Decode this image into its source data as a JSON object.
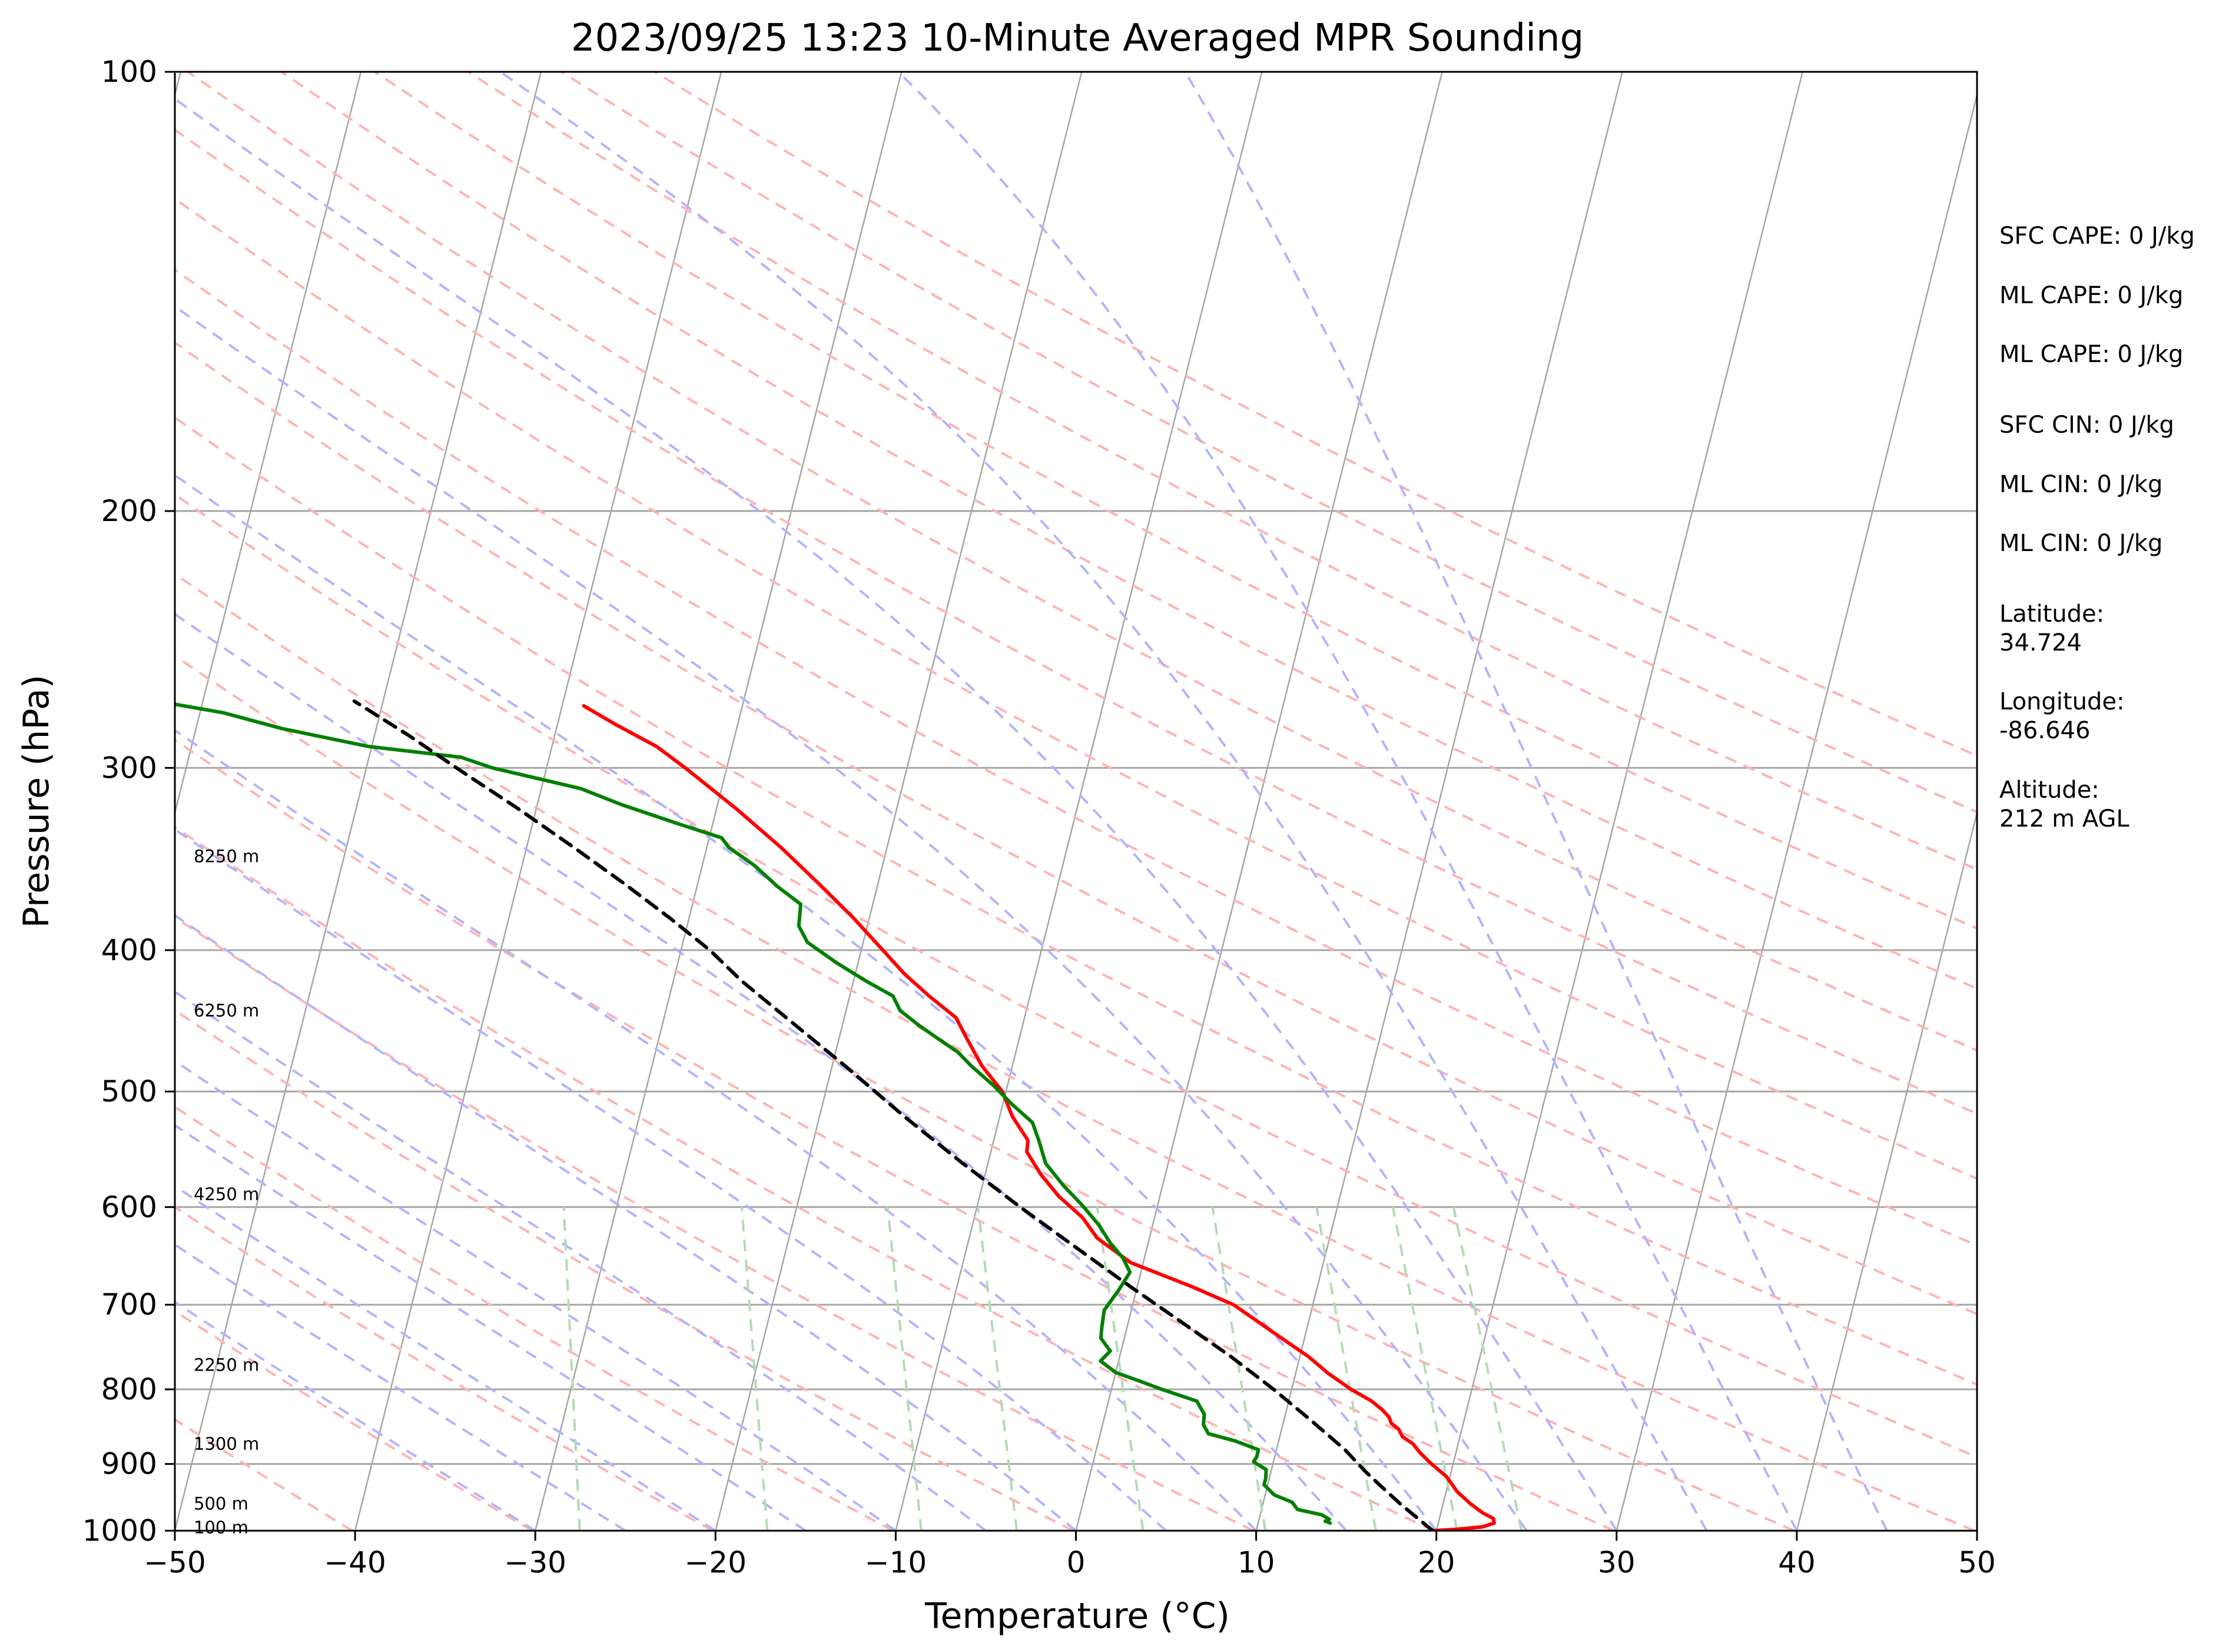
{
  "chart_data": {
    "type": "line",
    "subtype": "skew-t log-p sounding",
    "title": "2023/09/25 13:23 10-Minute Averaged MPR Sounding",
    "xlabel": "Temperature (°C)",
    "ylabel": "Pressure (hPa)",
    "xlim": [
      -50,
      50
    ],
    "ylim": [
      1000,
      100
    ],
    "y_scale": "log",
    "grid": true,
    "x_ticks": [
      -50,
      -40,
      -30,
      -20,
      -10,
      0,
      10,
      20,
      30,
      40,
      50
    ],
    "x_tick_labels": [
      "−50",
      "−40",
      "−30",
      "−20",
      "−10",
      "0",
      "10",
      "20",
      "30",
      "40",
      "50"
    ],
    "y_ticks": [
      1000,
      900,
      800,
      700,
      600,
      500,
      400,
      300,
      200,
      100
    ],
    "y_tick_labels": [
      "1000",
      "900",
      "800",
      "700",
      "600",
      "500",
      "400",
      "300",
      "200",
      "100"
    ],
    "height_labels": [
      {
        "pressure": 345,
        "text": "8250 m"
      },
      {
        "pressure": 440,
        "text": "6250 m"
      },
      {
        "pressure": 588,
        "text": "4250 m"
      },
      {
        "pressure": 770,
        "text": "2250 m"
      },
      {
        "pressure": 872,
        "text": "1300 m"
      },
      {
        "pressure": 958,
        "text": "500 m"
      },
      {
        "pressure": 995,
        "text": "100 m"
      }
    ],
    "series": [
      {
        "color": "#ff0000",
        "style": "solid",
        "points": [
          [
            1000,
            19.8
          ],
          [
            998,
            21.0
          ],
          [
            994,
            22.5
          ],
          [
            988,
            23.1
          ],
          [
            981,
            23.0
          ],
          [
            972,
            22.3
          ],
          [
            958,
            21.5
          ],
          [
            940,
            20.6
          ],
          [
            918,
            19.8
          ],
          [
            900,
            18.8
          ],
          [
            884,
            18.0
          ],
          [
            872,
            17.5
          ],
          [
            862,
            16.8
          ],
          [
            852,
            16.5
          ],
          [
            844,
            16.0
          ],
          [
            836,
            15.8
          ],
          [
            826,
            15.3
          ],
          [
            815,
            14.6
          ],
          [
            800,
            13.3
          ],
          [
            780,
            11.8
          ],
          [
            760,
            10.5
          ],
          [
            740,
            8.9
          ],
          [
            700,
            5.6
          ],
          [
            680,
            3.0
          ],
          [
            655,
            -0.7
          ],
          [
            630,
            -2.9
          ],
          [
            610,
            -4.0
          ],
          [
            590,
            -5.6
          ],
          [
            570,
            -6.9
          ],
          [
            550,
            -8.0
          ],
          [
            540,
            -8.1
          ],
          [
            520,
            -9.3
          ],
          [
            500,
            -10.2
          ],
          [
            480,
            -11.7
          ],
          [
            460,
            -12.9
          ],
          [
            445,
            -13.8
          ],
          [
            430,
            -15.6
          ],
          [
            415,
            -17.3
          ],
          [
            400,
            -18.8
          ],
          [
            380,
            -20.9
          ],
          [
            360,
            -23.3
          ],
          [
            340,
            -25.9
          ],
          [
            320,
            -28.9
          ],
          [
            300,
            -32.3
          ],
          [
            290,
            -34.2
          ],
          [
            280,
            -36.8
          ],
          [
            272,
            -38.8
          ]
        ]
      },
      {
        "color": "#008000",
        "style": "solid",
        "points": [
          [
            988,
            14.0
          ],
          [
            985,
            13.7
          ],
          [
            982,
            13.9
          ],
          [
            975,
            13.4
          ],
          [
            967,
            12.0
          ],
          [
            956,
            11.6
          ],
          [
            945,
            10.5
          ],
          [
            930,
            9.8
          ],
          [
            920,
            9.8
          ],
          [
            908,
            9.7
          ],
          [
            897,
            8.9
          ],
          [
            890,
            9.0
          ],
          [
            880,
            9.0
          ],
          [
            868,
            7.6
          ],
          [
            858,
            6.0
          ],
          [
            846,
            5.6
          ],
          [
            832,
            5.5
          ],
          [
            815,
            4.9
          ],
          [
            800,
            2.8
          ],
          [
            790,
            1.5
          ],
          [
            779,
            0.0
          ],
          [
            765,
            -1.0
          ],
          [
            753,
            -0.6
          ],
          [
            738,
            -1.3
          ],
          [
            725,
            -1.4
          ],
          [
            706,
            -1.5
          ],
          [
            685,
            -1.0
          ],
          [
            665,
            -0.6
          ],
          [
            650,
            -1.2
          ],
          [
            635,
            -2.1
          ],
          [
            617,
            -3.0
          ],
          [
            598,
            -4.2
          ],
          [
            580,
            -5.5
          ],
          [
            560,
            -6.8
          ],
          [
            540,
            -7.5
          ],
          [
            525,
            -8.1
          ],
          [
            510,
            -9.5
          ],
          [
            495,
            -10.8
          ],
          [
            480,
            -12.3
          ],
          [
            470,
            -13.2
          ],
          [
            460,
            -14.5
          ],
          [
            450,
            -15.8
          ],
          [
            440,
            -17.0
          ],
          [
            430,
            -17.6
          ],
          [
            420,
            -19.3
          ],
          [
            408,
            -21.2
          ],
          [
            395,
            -23.1
          ],
          [
            385,
            -23.8
          ],
          [
            372,
            -24.0
          ],
          [
            362,
            -25.5
          ],
          [
            350,
            -27.1
          ],
          [
            340,
            -28.8
          ],
          [
            335,
            -29.3
          ],
          [
            328,
            -31.8
          ],
          [
            318,
            -35.3
          ],
          [
            310,
            -37.8
          ],
          [
            300,
            -43.0
          ],
          [
            295,
            -44.9
          ],
          [
            290,
            -50.2
          ],
          [
            282,
            -55.2
          ],
          [
            275,
            -58.7
          ],
          [
            268,
            -64.1
          ]
        ]
      },
      {
        "color": "#000000",
        "style": "dashed",
        "points": [
          [
            1000,
            19.8
          ],
          [
            960,
            17.7
          ],
          [
            926,
            16.0
          ],
          [
            910,
            15.2
          ],
          [
            880,
            13.8
          ],
          [
            840,
            11.5
          ],
          [
            800,
            9.0
          ],
          [
            760,
            6.2
          ],
          [
            720,
            3.0
          ],
          [
            680,
            -0.4
          ],
          [
            640,
            -3.9
          ],
          [
            600,
            -7.6
          ],
          [
            560,
            -11.4
          ],
          [
            520,
            -15.3
          ],
          [
            480,
            -19.3
          ],
          [
            440,
            -23.8
          ],
          [
            420,
            -26.2
          ],
          [
            400,
            -28.4
          ],
          [
            380,
            -31.1
          ],
          [
            360,
            -34.1
          ],
          [
            340,
            -37.4
          ],
          [
            320,
            -41.0
          ],
          [
            300,
            -45.0
          ],
          [
            285,
            -48.1
          ],
          [
            270,
            -51.6
          ]
        ]
      }
    ]
  },
  "annotations": {
    "sfc_cape": "SFC CAPE: 0 J/kg",
    "ml_cape_1": "ML CAPE: 0 J/kg",
    "ml_cape_2": "ML CAPE: 0 J/kg",
    "sfc_cin": "SFC CIN: 0 J/kg",
    "ml_cin_1": "ML CIN: 0 J/kg",
    "ml_cin_2": "ML CIN: 0 J/kg",
    "latitude_label": "Latitude:",
    "latitude_value": "34.724",
    "longitude_label": "Longitude:",
    "longitude_value": "-86.646",
    "altitude_label": "Altitude:",
    "altitude_value": "212 m AGL"
  },
  "colors": {
    "isotherm": "#a6a6a6",
    "isobar": "#a6a6a6",
    "dry_adiabat": "#ffb3b3",
    "moist_adiabat": "#b3b3ff",
    "mixing_ratio": "#b3dbb3"
  }
}
